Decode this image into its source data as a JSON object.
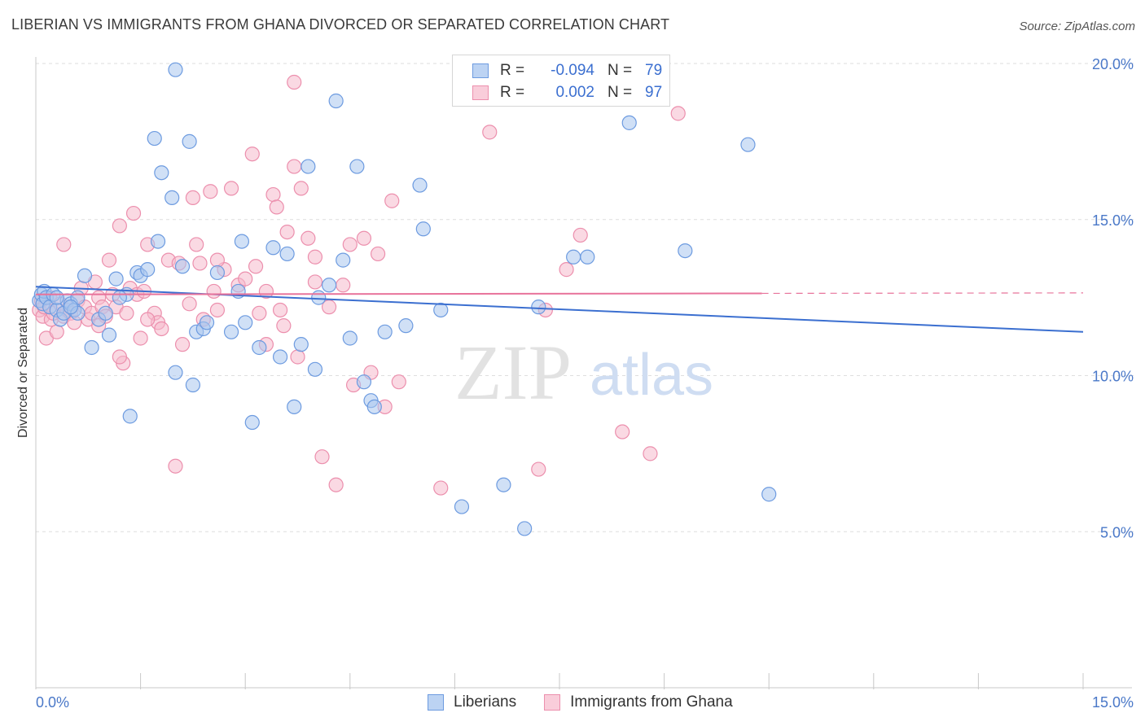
{
  "header": {
    "title": "LIBERIAN VS IMMIGRANTS FROM GHANA DIVORCED OR SEPARATED CORRELATION CHART",
    "source": "Source: ZipAtlas.com"
  },
  "legend": {
    "rows": [
      {
        "r_label": "R =",
        "r_value": "-0.094",
        "n_label": "N =",
        "n_value": "79"
      },
      {
        "r_label": "R =",
        "r_value": "0.002",
        "n_label": "N =",
        "n_value": "97"
      }
    ]
  },
  "bottom_legend": {
    "series1": "Liberians",
    "series2": "Immigrants from Ghana"
  },
  "watermark": {
    "zip": "ZIP",
    "atlas": "atlas"
  },
  "colors": {
    "blue_fill": "#a9c6ef",
    "blue_stroke": "#6d9be0",
    "blue_line": "#3b6fd0",
    "pink_fill": "#f6b9cc",
    "pink_stroke": "#ec8fad",
    "pink_line": "#e8739b",
    "grid": "#dedede",
    "tick_text": "#4a78c8"
  },
  "chart_data": {
    "type": "scatter",
    "title": "LIBERIAN VS IMMIGRANTS FROM GHANA DIVORCED OR SEPARATED CORRELATION CHART",
    "xlabel": "",
    "ylabel": "Divorced or Separated",
    "xlim": [
      0,
      15
    ],
    "ylim": [
      0,
      20
    ],
    "x_tick_labels": [
      "0.0%",
      "15.0%"
    ],
    "y_ticks": [
      5,
      10,
      15,
      20
    ],
    "y_tick_labels": [
      "5.0%",
      "10.0%",
      "15.0%",
      "20.0%"
    ],
    "grid": "horizontal dashed",
    "legend_position": "top-center",
    "series": [
      {
        "name": "Liberians",
        "color": "#a9c6ef",
        "r": -0.094,
        "n": 79,
        "trend": {
          "x": [
            0,
            15
          ],
          "y": [
            12.85,
            11.4
          ]
        },
        "points": [
          [
            0.05,
            12.4
          ],
          [
            0.08,
            12.6
          ],
          [
            0.1,
            12.3
          ],
          [
            0.12,
            12.7
          ],
          [
            0.15,
            12.5
          ],
          [
            0.2,
            12.2
          ],
          [
            0.25,
            12.6
          ],
          [
            0.3,
            12.1
          ],
          [
            0.35,
            11.8
          ],
          [
            0.4,
            12.0
          ],
          [
            0.45,
            12.4
          ],
          [
            0.5,
            12.3
          ],
          [
            0.55,
            12.1
          ],
          [
            0.6,
            12.5
          ],
          [
            0.7,
            13.2
          ],
          [
            0.8,
            10.9
          ],
          [
            0.9,
            11.8
          ],
          [
            1.0,
            12.0
          ],
          [
            1.05,
            11.3
          ],
          [
            1.15,
            13.1
          ],
          [
            1.3,
            12.6
          ],
          [
            1.35,
            8.7
          ],
          [
            1.45,
            13.3
          ],
          [
            1.5,
            13.2
          ],
          [
            1.6,
            13.4
          ],
          [
            1.7,
            17.6
          ],
          [
            1.75,
            14.3
          ],
          [
            1.8,
            16.5
          ],
          [
            1.95,
            15.7
          ],
          [
            2.0,
            10.1
          ],
          [
            2.1,
            13.5
          ],
          [
            2.2,
            17.5
          ],
          [
            2.25,
            9.7
          ],
          [
            2.3,
            11.4
          ],
          [
            2.4,
            11.5
          ],
          [
            2.45,
            11.7
          ],
          [
            2.6,
            13.3
          ],
          [
            2.8,
            11.4
          ],
          [
            2.9,
            12.7
          ],
          [
            2.95,
            14.3
          ],
          [
            3.0,
            11.7
          ],
          [
            3.1,
            8.5
          ],
          [
            3.2,
            10.9
          ],
          [
            3.4,
            14.1
          ],
          [
            3.5,
            10.6
          ],
          [
            3.6,
            13.9
          ],
          [
            3.7,
            9.0
          ],
          [
            3.8,
            11.0
          ],
          [
            3.9,
            16.7
          ],
          [
            4.0,
            10.2
          ],
          [
            4.05,
            12.5
          ],
          [
            4.2,
            12.9
          ],
          [
            4.3,
            18.8
          ],
          [
            4.4,
            13.7
          ],
          [
            4.5,
            11.2
          ],
          [
            4.6,
            16.7
          ],
          [
            4.7,
            9.8
          ],
          [
            4.8,
            9.2
          ],
          [
            4.85,
            9.0
          ],
          [
            5.0,
            11.4
          ],
          [
            5.3,
            11.6
          ],
          [
            5.5,
            16.1
          ],
          [
            5.55,
            14.7
          ],
          [
            5.8,
            12.1
          ],
          [
            6.1,
            5.8
          ],
          [
            6.7,
            6.5
          ],
          [
            7.0,
            5.1
          ],
          [
            7.2,
            12.2
          ],
          [
            7.7,
            13.8
          ],
          [
            7.9,
            13.8
          ],
          [
            8.5,
            18.1
          ],
          [
            9.3,
            14.0
          ],
          [
            10.2,
            17.4
          ],
          [
            10.5,
            6.2
          ],
          [
            0.3,
            12.5
          ],
          [
            0.6,
            12.0
          ],
          [
            1.2,
            12.5
          ],
          [
            2.0,
            19.8
          ],
          [
            0.5,
            12.2
          ]
        ]
      },
      {
        "name": "Immigrants from Ghana",
        "color": "#f6b9cc",
        "r": 0.002,
        "n": 97,
        "trend": {
          "x": [
            0,
            15
          ],
          "y": [
            12.6,
            12.65
          ]
        },
        "points": [
          [
            0.05,
            12.1
          ],
          [
            0.08,
            12.4
          ],
          [
            0.1,
            11.9
          ],
          [
            0.12,
            12.2
          ],
          [
            0.15,
            11.2
          ],
          [
            0.2,
            12.5
          ],
          [
            0.22,
            11.8
          ],
          [
            0.25,
            12.0
          ],
          [
            0.3,
            11.4
          ],
          [
            0.35,
            12.3
          ],
          [
            0.4,
            11.9
          ],
          [
            0.45,
            12.1
          ],
          [
            0.5,
            12.0
          ],
          [
            0.55,
            11.7
          ],
          [
            0.6,
            12.4
          ],
          [
            0.65,
            12.8
          ],
          [
            0.7,
            12.2
          ],
          [
            0.75,
            11.8
          ],
          [
            0.8,
            12.0
          ],
          [
            0.85,
            13.0
          ],
          [
            0.9,
            12.5
          ],
          [
            0.95,
            12.2
          ],
          [
            1.0,
            11.9
          ],
          [
            1.05,
            13.7
          ],
          [
            1.1,
            12.6
          ],
          [
            1.15,
            12.2
          ],
          [
            1.2,
            14.8
          ],
          [
            1.25,
            10.4
          ],
          [
            1.3,
            12.0
          ],
          [
            1.35,
            12.8
          ],
          [
            1.4,
            15.2
          ],
          [
            1.45,
            12.6
          ],
          [
            1.5,
            11.2
          ],
          [
            1.55,
            12.7
          ],
          [
            1.6,
            14.2
          ],
          [
            1.7,
            12.0
          ],
          [
            1.75,
            11.7
          ],
          [
            1.8,
            11.5
          ],
          [
            1.9,
            13.7
          ],
          [
            2.0,
            7.1
          ],
          [
            2.05,
            13.6
          ],
          [
            2.1,
            11.0
          ],
          [
            2.2,
            12.3
          ],
          [
            2.25,
            15.7
          ],
          [
            2.3,
            14.2
          ],
          [
            2.35,
            13.6
          ],
          [
            2.4,
            11.8
          ],
          [
            2.5,
            15.9
          ],
          [
            2.55,
            12.7
          ],
          [
            2.6,
            12.1
          ],
          [
            2.7,
            13.4
          ],
          [
            2.8,
            16.0
          ],
          [
            2.9,
            12.9
          ],
          [
            3.0,
            13.1
          ],
          [
            3.1,
            17.1
          ],
          [
            3.15,
            13.5
          ],
          [
            3.2,
            12.0
          ],
          [
            3.3,
            12.7
          ],
          [
            3.4,
            15.8
          ],
          [
            3.45,
            15.4
          ],
          [
            3.5,
            12.1
          ],
          [
            3.55,
            11.6
          ],
          [
            3.6,
            14.6
          ],
          [
            3.7,
            16.7
          ],
          [
            3.75,
            10.6
          ],
          [
            3.8,
            16.0
          ],
          [
            3.9,
            14.4
          ],
          [
            4.0,
            13.8
          ],
          [
            4.1,
            7.4
          ],
          [
            4.2,
            12.2
          ],
          [
            4.3,
            6.5
          ],
          [
            4.4,
            12.9
          ],
          [
            4.5,
            14.2
          ],
          [
            4.55,
            9.7
          ],
          [
            4.7,
            14.4
          ],
          [
            4.8,
            10.1
          ],
          [
            4.9,
            13.9
          ],
          [
            5.0,
            9.0
          ],
          [
            5.1,
            15.6
          ],
          [
            5.2,
            9.8
          ],
          [
            5.8,
            6.4
          ],
          [
            6.5,
            17.8
          ],
          [
            7.2,
            7.0
          ],
          [
            7.3,
            12.1
          ],
          [
            7.6,
            13.4
          ],
          [
            7.8,
            14.5
          ],
          [
            8.4,
            8.2
          ],
          [
            8.8,
            7.5
          ],
          [
            9.2,
            18.4
          ],
          [
            3.7,
            19.4
          ],
          [
            1.2,
            10.6
          ],
          [
            2.6,
            13.7
          ],
          [
            0.9,
            11.6
          ],
          [
            1.6,
            11.8
          ],
          [
            3.3,
            11.0
          ],
          [
            4.0,
            13.0
          ],
          [
            0.4,
            14.2
          ]
        ]
      }
    ]
  }
}
